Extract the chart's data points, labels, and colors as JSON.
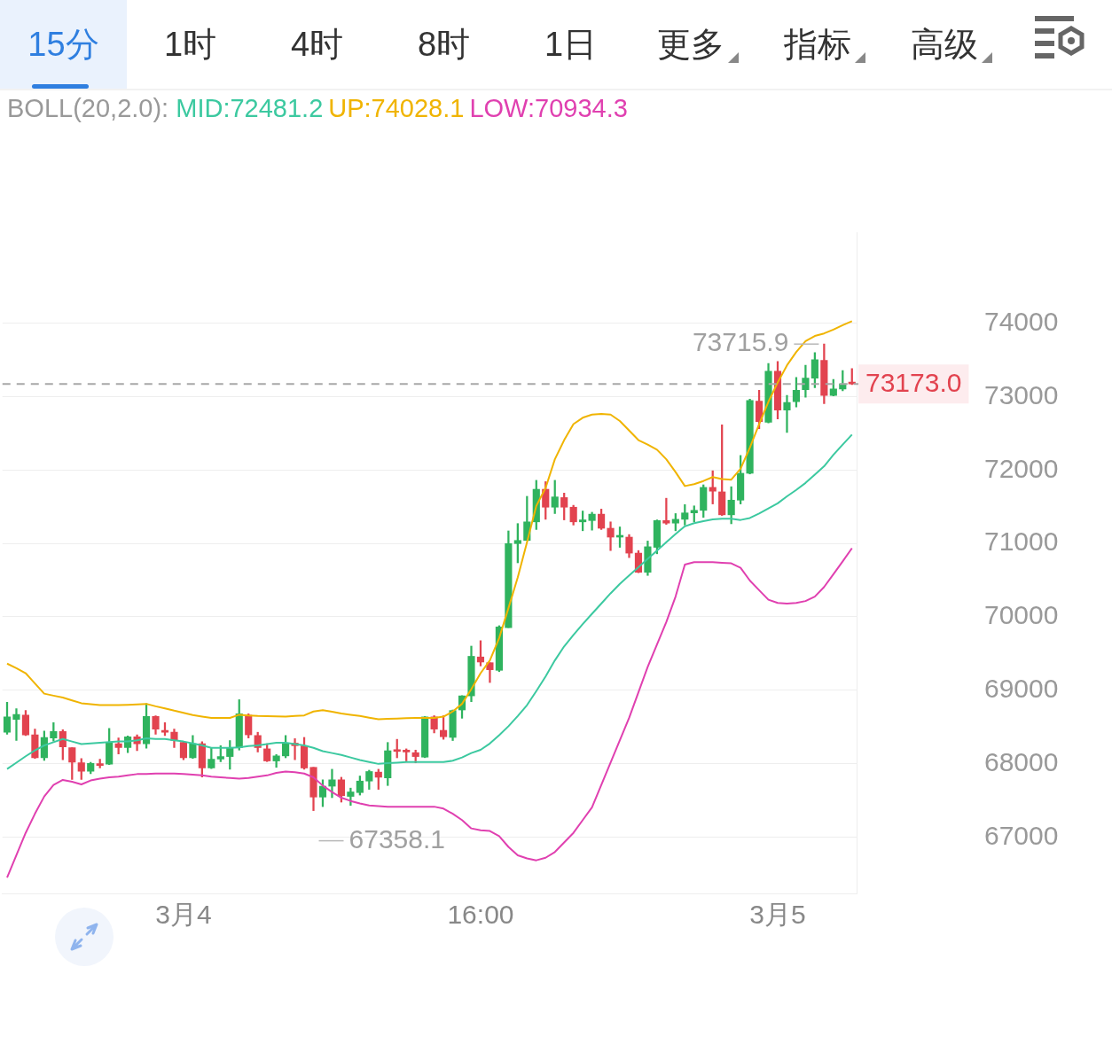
{
  "chart_data": {
    "type": "candlestick",
    "title": "BOLL(20,2.0):",
    "legend": "top",
    "grid": "y",
    "categories": [
      null,
      null,
      null,
      null,
      null,
      null,
      null,
      null,
      null,
      null,
      null,
      null,
      null,
      null,
      null,
      null,
      null,
      null,
      null,
      "3月4",
      null,
      null,
      null,
      null,
      null,
      null,
      null,
      null,
      null,
      null,
      null,
      null,
      null,
      null,
      null,
      null,
      null,
      null,
      null,
      null,
      null,
      null,
      null,
      null,
      null,
      null,
      null,
      null,
      null,
      null,
      null,
      "16:00",
      null,
      null,
      null,
      null,
      null,
      null,
      null,
      null,
      null,
      null,
      null,
      null,
      null,
      null,
      null,
      null,
      null,
      null,
      null,
      null,
      null,
      null,
      null,
      null,
      null,
      null,
      null,
      null,
      null,
      null,
      null,
      "3月5",
      null,
      null,
      null,
      null,
      null,
      null,
      null,
      null
    ],
    "ohlc": [
      [
        68425,
        68835,
        68400,
        68635
      ],
      [
        68600,
        68748,
        68313,
        68670
      ],
      [
        68660,
        68722,
        68382,
        68391
      ],
      [
        68391,
        68470,
        68070,
        68078
      ],
      [
        68078,
        68443,
        68043,
        68356
      ],
      [
        68348,
        68556,
        68304,
        68435
      ],
      [
        68435,
        68461,
        68052,
        68226
      ],
      [
        68217,
        68217,
        67782,
        68017
      ],
      [
        68009,
        68069,
        67782,
        67896
      ],
      [
        67896,
        68017,
        67861,
        68000
      ],
      [
        67991,
        68060,
        67939,
        67974
      ],
      [
        67991,
        68478,
        67985,
        68278
      ],
      [
        68270,
        68348,
        68130,
        68217
      ],
      [
        68217,
        68375,
        68148,
        68365
      ],
      [
        68365,
        68391,
        68174,
        68270
      ],
      [
        68270,
        68817,
        68209,
        68643
      ],
      [
        68643,
        68652,
        68400,
        68469
      ],
      [
        68452,
        68556,
        68382,
        68426
      ],
      [
        68426,
        68470,
        68217,
        68313
      ],
      [
        68287,
        68290,
        68052,
        68078
      ],
      [
        68078,
        68382,
        68070,
        68270
      ],
      [
        68270,
        68296,
        67817,
        67939
      ],
      [
        67939,
        68209,
        67930,
        68060
      ],
      [
        68060,
        68243,
        68026,
        68095
      ],
      [
        68095,
        68313,
        67922,
        68209
      ],
      [
        68217,
        68870,
        68183,
        68678
      ],
      [
        68660,
        68678,
        68348,
        68391
      ],
      [
        68382,
        68426,
        68157,
        68217
      ],
      [
        68200,
        68270,
        68026,
        68035
      ],
      [
        68035,
        68122,
        67948,
        68104
      ],
      [
        68104,
        68382,
        68078,
        68278
      ],
      [
        68278,
        68339,
        68052,
        68243
      ],
      [
        68240,
        68356,
        67922,
        67939
      ],
      [
        67948,
        67948,
        67358.1,
        67543
      ],
      [
        67543,
        67778,
        67413,
        67691
      ],
      [
        67691,
        67922,
        67535,
        67778
      ],
      [
        67778,
        67813,
        67474,
        67561
      ],
      [
        67552,
        67665,
        67430,
        67613
      ],
      [
        67604,
        67830,
        67570,
        67761
      ],
      [
        67761,
        67909,
        67648,
        67891
      ],
      [
        67883,
        67922,
        67648,
        67813
      ],
      [
        67804,
        68287,
        67700,
        68174
      ],
      [
        68183,
        68330,
        68078,
        68165
      ],
      [
        68183,
        68200,
        68035,
        68157
      ],
      [
        68148,
        68183,
        68009,
        68095
      ],
      [
        68087,
        68640,
        68080,
        68635
      ],
      [
        68635,
        68652,
        68417,
        68469
      ],
      [
        68452,
        68652,
        68330,
        68365
      ],
      [
        68356,
        68730,
        68313,
        68722
      ],
      [
        68730,
        68925,
        68617,
        68922
      ],
      [
        68922,
        69600,
        68843,
        69461
      ],
      [
        69452,
        69674,
        69330,
        69383
      ],
      [
        69374,
        69374,
        69104,
        69278
      ],
      [
        69270,
        69878,
        69252,
        69861
      ],
      [
        69852,
        71170,
        69852,
        70997
      ],
      [
        70997,
        71270,
        70735,
        71040
      ],
      [
        71040,
        71641,
        71040,
        71293
      ],
      [
        71293,
        71859,
        71189,
        71737
      ],
      [
        71737,
        71841,
        71328,
        71493
      ],
      [
        71493,
        71859,
        71406,
        71633
      ],
      [
        71624,
        71685,
        71320,
        71493
      ],
      [
        71493,
        71519,
        71250,
        71293
      ],
      [
        71293,
        71441,
        71172,
        71320
      ],
      [
        71311,
        71424,
        71180,
        71398
      ],
      [
        71398,
        71467,
        71189,
        71206
      ],
      [
        71206,
        71293,
        70902,
        71085
      ],
      [
        71085,
        71224,
        70946,
        71102
      ],
      [
        71085,
        71120,
        70806,
        70867
      ],
      [
        70867,
        70902,
        70600,
        70606
      ],
      [
        70606,
        71032,
        70563,
        70954
      ],
      [
        70946,
        71320,
        70858,
        71311
      ],
      [
        71311,
        71615,
        71259,
        71276
      ],
      [
        71276,
        71406,
        71172,
        71328
      ],
      [
        71328,
        71528,
        71250,
        71415
      ],
      [
        71415,
        71511,
        71293,
        71450
      ],
      [
        71450,
        71798,
        71354,
        71763
      ],
      [
        71763,
        71989,
        71537,
        71711
      ],
      [
        71702,
        72616,
        71380,
        71389
      ],
      [
        71389,
        71772,
        71267,
        71589
      ],
      [
        71589,
        72198,
        71537,
        71955
      ],
      [
        71955,
        72964,
        71946,
        72947
      ],
      [
        72938,
        73086,
        72564,
        72660
      ],
      [
        72651,
        73452,
        72640,
        73347
      ],
      [
        73347,
        73478,
        72695,
        72816
      ],
      [
        72816,
        73017,
        72512,
        72921
      ],
      [
        72930,
        73260,
        72860,
        73086
      ],
      [
        73095,
        73426,
        72991,
        73252
      ],
      [
        73252,
        73600,
        73121,
        73504
      ],
      [
        73495,
        73715.9,
        72903,
        73017
      ],
      [
        73017,
        73234,
        73010,
        73104
      ],
      [
        73104,
        73356,
        73078,
        73173
      ],
      [
        73182,
        73382,
        73165,
        73173.0
      ]
    ],
    "series": [
      {
        "name": "MID:72481.2",
        "type": "line",
        "color": "#3cc9a0",
        "values": [
          67925,
          68012,
          68099,
          68178,
          68247,
          68291,
          68334,
          68300,
          68265,
          68273,
          68282,
          68291,
          68300,
          68300,
          68317,
          68343,
          68334,
          68334,
          68317,
          68300,
          68273,
          68247,
          68213,
          68213,
          68213,
          68221,
          68239,
          68247,
          68265,
          68282,
          68282,
          68265,
          68247,
          68213,
          68169,
          68143,
          68117,
          68082,
          68047,
          68021,
          67995,
          68004,
          68012,
          68021,
          68021,
          68021,
          68021,
          68021,
          68038,
          68082,
          68143,
          68186,
          68273,
          68387,
          68508,
          68648,
          68796,
          68987,
          69187,
          69405,
          69596,
          69753,
          69901,
          70040,
          70179,
          70319,
          70449,
          70562,
          70675,
          70789,
          70902,
          71015,
          71128,
          71232,
          71276,
          71302,
          71328,
          71337,
          71337,
          71319,
          71346,
          71407,
          71476,
          71546,
          71641,
          71729,
          71824,
          71937,
          72051,
          72207,
          72346,
          72481.2
        ]
      },
      {
        "name": "UP:74028.1",
        "type": "line",
        "color": "#f0b400",
        "values": [
          69361,
          69300,
          69231,
          69090,
          68952,
          68925,
          68900,
          68860,
          68822,
          68810,
          68796,
          68796,
          68796,
          68800,
          68806,
          68813,
          68780,
          68752,
          68720,
          68691,
          68660,
          68640,
          68622,
          68622,
          68622,
          68665,
          68655,
          68648,
          68645,
          68642,
          68639,
          68648,
          68656,
          68709,
          68726,
          68705,
          68682,
          68665,
          68648,
          68625,
          68604,
          68608,
          68613,
          68618,
          68622,
          68622,
          68622,
          68639,
          68709,
          68813,
          69013,
          69231,
          69405,
          69710,
          70118,
          70536,
          71015,
          71511,
          71755,
          72146,
          72407,
          72625,
          72712,
          72755,
          72764,
          72755,
          72668,
          72538,
          72407,
          72346,
          72277,
          72146,
          71972,
          71781,
          71807,
          71850,
          71903,
          71876,
          71868,
          72016,
          72303,
          72625,
          72930,
          73191,
          73426,
          73608,
          73756,
          73826,
          73861,
          73913,
          73974,
          74028.1
        ]
      },
      {
        "name": "LOW:70934.3",
        "type": "line",
        "color": "#e040b0",
        "values": [
          66446,
          66750,
          67055,
          67316,
          67551,
          67708,
          67777,
          67751,
          67716,
          67769,
          67795,
          67812,
          67821,
          67838,
          67856,
          67856,
          67864,
          67864,
          67864,
          67856,
          67847,
          67838,
          67821,
          67812,
          67803,
          67795,
          67803,
          67821,
          67838,
          67873,
          67890,
          67882,
          67864,
          67812,
          67699,
          67612,
          67534,
          67490,
          67455,
          67429,
          67421,
          67412,
          67412,
          67412,
          67412,
          67412,
          67412,
          67386,
          67316,
          67229,
          67116,
          67090,
          67081,
          67011,
          66864,
          66750,
          66707,
          66681,
          66716,
          66794,
          66924,
          67055,
          67229,
          67403,
          67708,
          68012,
          68317,
          68622,
          68970,
          69318,
          69622,
          69927,
          70275,
          70710,
          70745,
          70745,
          70745,
          70736,
          70728,
          70667,
          70493,
          70362,
          70232,
          70188,
          70179,
          70188,
          70214,
          70275,
          70406,
          70580,
          70754,
          70934.3
        ]
      }
    ],
    "ylim": [
      66230,
      75240
    ],
    "yticks": [
      67000,
      68000,
      69000,
      70000,
      71000,
      72000,
      73000,
      74000
    ],
    "ref_lines": [
      {
        "axis": "y",
        "value": 73173.0,
        "label": "73173.0",
        "color": "#a8a8a8",
        "line_style": "dashed"
      }
    ],
    "annotations": [
      "15分",
      "1时",
      "4时",
      "8时",
      "1日",
      "更多",
      "指标",
      "高级",
      "73715.9",
      "67358.1"
    ]
  }
}
